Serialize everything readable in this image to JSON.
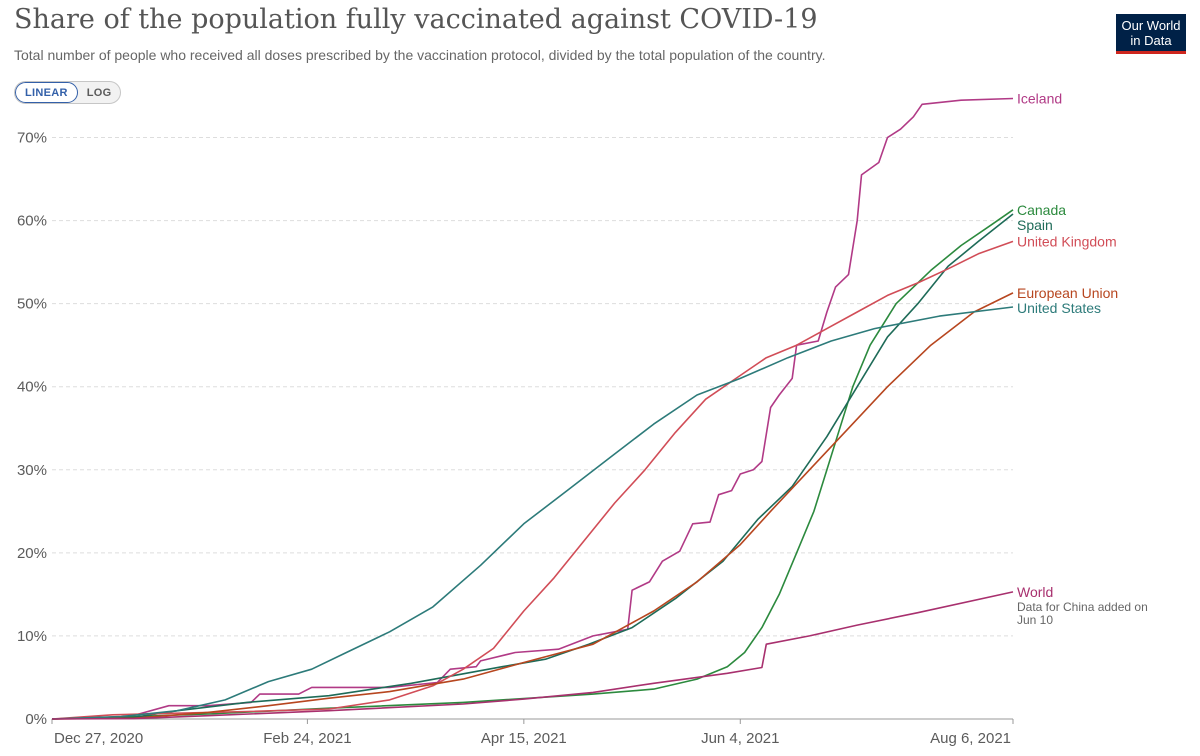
{
  "header": {
    "title": "Share of the population fully vaccinated against COVID-19",
    "subtitle": "Total number of people who received all doses prescribed by the vaccination protocol, divided by the total population of the country.",
    "logo_line1": "Our World",
    "logo_line2": "in Data"
  },
  "controls": {
    "linear_label": "LINEAR",
    "log_label": "LOG",
    "selected": "LINEAR"
  },
  "colors": {
    "axis": "#999999",
    "grid": "#dddddd",
    "label": "#5b5b5b"
  },
  "chart_data": {
    "type": "line",
    "title": "Share of the population fully vaccinated against COVID-19",
    "x_axis": {
      "type": "date",
      "range": [
        "2020-12-27",
        "2021-08-06"
      ],
      "ticks": [
        "Dec 27, 2020",
        "Feb 24, 2021",
        "Apr 15, 2021",
        "Jun 4, 2021",
        "Aug 6, 2021"
      ],
      "tick_dates": [
        "2020-12-27",
        "2021-02-24",
        "2021-04-15",
        "2021-06-04",
        "2021-08-06"
      ]
    },
    "y_axis": {
      "unit": "%",
      "range": [
        0,
        75
      ],
      "ticks": [
        0,
        10,
        20,
        30,
        40,
        50,
        60,
        70
      ],
      "tick_labels": [
        "0%",
        "10%",
        "20%",
        "30%",
        "40%",
        "50%",
        "60%",
        "70%"
      ]
    },
    "grid": true,
    "legend": "right-end labels",
    "series": [
      {
        "name": "Iceland",
        "color": "#b13a86",
        "points": [
          [
            "2020-12-27",
            0
          ],
          [
            "2021-01-14",
            0.3
          ],
          [
            "2021-01-23",
            1.6
          ],
          [
            "2021-02-01",
            1.6
          ],
          [
            "2021-02-11",
            2.0
          ],
          [
            "2021-02-13",
            3.0
          ],
          [
            "2021-02-22",
            3.0
          ],
          [
            "2021-02-25",
            3.8
          ],
          [
            "2021-03-15",
            3.8
          ],
          [
            "2021-03-26",
            4.4
          ],
          [
            "2021-03-29",
            6.0
          ],
          [
            "2021-04-04",
            6.3
          ],
          [
            "2021-04-05",
            7.0
          ],
          [
            "2021-04-13",
            8.0
          ],
          [
            "2021-04-23",
            8.4
          ],
          [
            "2021-05-01",
            10.0
          ],
          [
            "2021-05-09",
            10.8
          ],
          [
            "2021-05-10",
            15.5
          ],
          [
            "2021-05-14",
            16.5
          ],
          [
            "2021-05-17",
            19.0
          ],
          [
            "2021-05-21",
            20.2
          ],
          [
            "2021-05-24",
            23.5
          ],
          [
            "2021-05-28",
            23.7
          ],
          [
            "2021-05-30",
            27.0
          ],
          [
            "2021-06-02",
            27.5
          ],
          [
            "2021-06-04",
            29.5
          ],
          [
            "2021-06-07",
            30.0
          ],
          [
            "2021-06-09",
            31.0
          ],
          [
            "2021-06-11",
            37.5
          ],
          [
            "2021-06-13",
            39.0
          ],
          [
            "2021-06-16",
            41.0
          ],
          [
            "2021-06-17",
            45.0
          ],
          [
            "2021-06-22",
            45.5
          ],
          [
            "2021-06-24",
            49.0
          ],
          [
            "2021-06-26",
            52.0
          ],
          [
            "2021-06-29",
            53.5
          ],
          [
            "2021-07-01",
            60.0
          ],
          [
            "2021-07-02",
            65.5
          ],
          [
            "2021-07-06",
            67.0
          ],
          [
            "2021-07-08",
            70.0
          ],
          [
            "2021-07-11",
            71.0
          ],
          [
            "2021-07-14",
            72.5
          ],
          [
            "2021-07-16",
            74.0
          ],
          [
            "2021-07-25",
            74.5
          ],
          [
            "2021-08-06",
            74.7
          ]
        ]
      },
      {
        "name": "Canada",
        "color": "#2c8a3e",
        "points": [
          [
            "2020-12-27",
            0
          ],
          [
            "2021-01-15",
            0.3
          ],
          [
            "2021-02-01",
            0.6
          ],
          [
            "2021-03-01",
            1.3
          ],
          [
            "2021-04-01",
            2.0
          ],
          [
            "2021-05-01",
            3.0
          ],
          [
            "2021-05-15",
            3.6
          ],
          [
            "2021-05-25",
            4.8
          ],
          [
            "2021-06-01",
            6.3
          ],
          [
            "2021-06-05",
            8.0
          ],
          [
            "2021-06-09",
            11.0
          ],
          [
            "2021-06-13",
            15.0
          ],
          [
            "2021-06-17",
            20.0
          ],
          [
            "2021-06-21",
            25.0
          ],
          [
            "2021-06-24",
            30.0
          ],
          [
            "2021-06-27",
            35.0
          ],
          [
            "2021-06-30",
            40.0
          ],
          [
            "2021-07-04",
            45.0
          ],
          [
            "2021-07-10",
            50.0
          ],
          [
            "2021-07-18",
            54.0
          ],
          [
            "2021-07-25",
            57.0
          ],
          [
            "2021-08-01",
            59.5
          ],
          [
            "2021-08-06",
            61.3
          ]
        ]
      },
      {
        "name": "Spain",
        "color": "#1e6b58",
        "points": [
          [
            "2020-12-27",
            0
          ],
          [
            "2021-01-15",
            0.2
          ],
          [
            "2021-01-25",
            1.0
          ],
          [
            "2021-02-10",
            2.0
          ],
          [
            "2021-03-01",
            2.8
          ],
          [
            "2021-03-20",
            4.3
          ],
          [
            "2021-04-10",
            6.3
          ],
          [
            "2021-04-20",
            7.2
          ],
          [
            "2021-04-30",
            9.0
          ],
          [
            "2021-05-10",
            11.0
          ],
          [
            "2021-05-20",
            14.5
          ],
          [
            "2021-05-31",
            19.0
          ],
          [
            "2021-06-08",
            24.0
          ],
          [
            "2021-06-16",
            28.0
          ],
          [
            "2021-06-24",
            34.0
          ],
          [
            "2021-07-01",
            40.0
          ],
          [
            "2021-07-08",
            46.0
          ],
          [
            "2021-07-15",
            50.0
          ],
          [
            "2021-07-22",
            54.5
          ],
          [
            "2021-07-29",
            57.5
          ],
          [
            "2021-08-06",
            60.8
          ]
        ]
      },
      {
        "name": "United Kingdom",
        "color": "#d14d57",
        "points": [
          [
            "2020-12-27",
            0
          ],
          [
            "2021-01-10",
            0.5
          ],
          [
            "2021-01-25",
            0.7
          ],
          [
            "2021-02-10",
            0.9
          ],
          [
            "2021-03-01",
            1.2
          ],
          [
            "2021-03-15",
            2.3
          ],
          [
            "2021-03-25",
            4.0
          ],
          [
            "2021-04-01",
            6.0
          ],
          [
            "2021-04-08",
            8.5
          ],
          [
            "2021-04-15",
            13.0
          ],
          [
            "2021-04-22",
            17.0
          ],
          [
            "2021-04-29",
            21.5
          ],
          [
            "2021-05-06",
            26.0
          ],
          [
            "2021-05-13",
            30.0
          ],
          [
            "2021-05-20",
            34.5
          ],
          [
            "2021-05-27",
            38.5
          ],
          [
            "2021-06-03",
            41.0
          ],
          [
            "2021-06-10",
            43.5
          ],
          [
            "2021-06-17",
            45.0
          ],
          [
            "2021-06-24",
            47.0
          ],
          [
            "2021-07-01",
            49.0
          ],
          [
            "2021-07-08",
            51.0
          ],
          [
            "2021-07-15",
            52.5
          ],
          [
            "2021-07-22",
            54.2
          ],
          [
            "2021-07-29",
            56.0
          ],
          [
            "2021-08-06",
            57.5
          ]
        ]
      },
      {
        "name": "European Union",
        "color": "#b7461f",
        "points": [
          [
            "2020-12-27",
            0
          ],
          [
            "2021-01-15",
            0.1
          ],
          [
            "2021-02-01",
            0.8
          ],
          [
            "2021-02-15",
            1.6
          ],
          [
            "2021-03-01",
            2.5
          ],
          [
            "2021-03-15",
            3.3
          ],
          [
            "2021-04-01",
            4.8
          ],
          [
            "2021-04-15",
            6.8
          ],
          [
            "2021-05-01",
            9.0
          ],
          [
            "2021-05-15",
            13.0
          ],
          [
            "2021-05-25",
            16.5
          ],
          [
            "2021-06-04",
            21.0
          ],
          [
            "2021-06-11",
            25.0
          ],
          [
            "2021-06-20",
            30.0
          ],
          [
            "2021-06-29",
            35.0
          ],
          [
            "2021-07-08",
            40.0
          ],
          [
            "2021-07-18",
            45.0
          ],
          [
            "2021-07-28",
            49.0
          ],
          [
            "2021-08-06",
            51.3
          ]
        ]
      },
      {
        "name": "United States",
        "color": "#2d7b7a",
        "points": [
          [
            "2020-12-27",
            0
          ],
          [
            "2021-01-12",
            0.3
          ],
          [
            "2021-01-25",
            1.0
          ],
          [
            "2021-02-05",
            2.3
          ],
          [
            "2021-02-15",
            4.5
          ],
          [
            "2021-02-25",
            6.0
          ],
          [
            "2021-03-05",
            8.0
          ],
          [
            "2021-03-15",
            10.5
          ],
          [
            "2021-03-25",
            13.5
          ],
          [
            "2021-04-05",
            18.5
          ],
          [
            "2021-04-15",
            23.5
          ],
          [
            "2021-04-25",
            27.5
          ],
          [
            "2021-05-05",
            31.5
          ],
          [
            "2021-05-15",
            35.5
          ],
          [
            "2021-05-25",
            39.0
          ],
          [
            "2021-06-04",
            41.0
          ],
          [
            "2021-06-15",
            43.5
          ],
          [
            "2021-06-25",
            45.5
          ],
          [
            "2021-07-05",
            47.0
          ],
          [
            "2021-07-20",
            48.5
          ],
          [
            "2021-08-06",
            49.6
          ]
        ]
      },
      {
        "name": "World",
        "color": "#a8306e",
        "points": [
          [
            "2020-12-27",
            0
          ],
          [
            "2021-01-15",
            0.05
          ],
          [
            "2021-02-01",
            0.4
          ],
          [
            "2021-03-01",
            1.0
          ],
          [
            "2021-04-01",
            1.8
          ],
          [
            "2021-04-15",
            2.4
          ],
          [
            "2021-05-01",
            3.2
          ],
          [
            "2021-05-15",
            4.3
          ],
          [
            "2021-06-01",
            5.5
          ],
          [
            "2021-06-09",
            6.2
          ],
          [
            "2021-06-10",
            9.0
          ],
          [
            "2021-06-20",
            10.0
          ],
          [
            "2021-07-01",
            11.3
          ],
          [
            "2021-07-15",
            12.8
          ],
          [
            "2021-08-06",
            15.3
          ]
        ]
      }
    ],
    "annotations": [
      {
        "series": "World",
        "text_lines": [
          "Data for China added on",
          "Jun 10"
        ]
      }
    ]
  }
}
